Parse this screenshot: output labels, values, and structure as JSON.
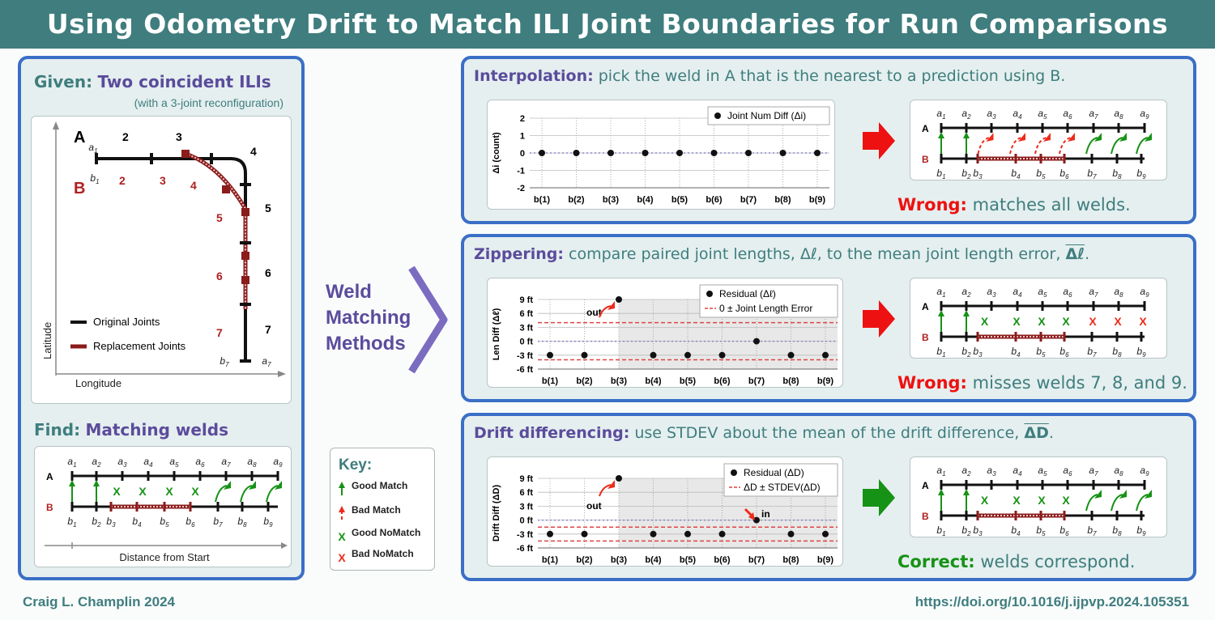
{
  "header": {
    "title": "Using Odometry Drift to Match ILI Joint Boundaries for Run Comparisons"
  },
  "given": {
    "label": "Given:",
    "title": "Two coincident ILIs",
    "subtitle": "(with a 3-joint reconfiguration)",
    "run_a": "A",
    "run_b": "B",
    "a_nums": [
      "2",
      "3",
      "4",
      "5",
      "6",
      "7"
    ],
    "b_nums": [
      "2",
      "3",
      "4",
      "5",
      "6",
      "7"
    ],
    "corner_labels": [
      "a1",
      "b1",
      "b7",
      "a7"
    ],
    "legend": [
      "Original Joints",
      "Replacement Joints"
    ],
    "axis_y": "Latitude",
    "axis_x": "Longitude"
  },
  "find": {
    "label": "Find:",
    "title": "Matching welds",
    "axis_x": "Distance from Start",
    "a_labels": [
      "a1",
      "a2",
      "a3",
      "a4",
      "a5",
      "a6",
      "a7",
      "a8",
      "a9"
    ],
    "b_labels": [
      "b1",
      "b2",
      "b3",
      "b4",
      "b5",
      "b6",
      "b7",
      "b8",
      "b9"
    ]
  },
  "methods": {
    "l1": "Weld",
    "l2": "Matching",
    "l3": "Methods"
  },
  "key": {
    "title": "Key:",
    "items": [
      "Good Match",
      "Bad Match",
      "Good NoMatch",
      "Bad NoMatch"
    ],
    "colors": {
      "good": "#169216",
      "bad": "#ee2a1a"
    }
  },
  "interpolation": {
    "title": "Interpolation:",
    "desc": "pick the weld in A that is the nearest to a prediction using B.",
    "verdict_label": "Wrong:",
    "verdict_text": "matches all welds.",
    "chart_data": {
      "type": "scatter",
      "categories": [
        "b(1)",
        "b(2)",
        "b(3)",
        "b(4)",
        "b(5)",
        "b(6)",
        "b(7)",
        "b(8)",
        "b(9)"
      ],
      "series": [
        {
          "name": "Joint Num Diff  (Δi)",
          "values": [
            0,
            0,
            0,
            0,
            0,
            0,
            0,
            0,
            0
          ]
        }
      ],
      "ylabel": "Δi (count)",
      "yticks": [
        "2",
        "1",
        "0",
        "-1",
        "-2"
      ],
      "ylim": [
        -2,
        2
      ],
      "grid": true,
      "legend": "top-right"
    }
  },
  "zippering": {
    "title": "Zippering:",
    "desc": "compare paired joint lengths, Δℓ, to the mean joint length error,",
    "desc_sym": "Δℓ",
    "verdict_label": "Wrong:",
    "verdict_text": "misses welds 7, 8, and 9.",
    "annotation": "out",
    "chart_data": {
      "type": "scatter",
      "categories": [
        "b(1)",
        "b(2)",
        "b(3)",
        "b(4)",
        "b(5)",
        "b(6)",
        "b(7)",
        "b(8)",
        "b(9)"
      ],
      "series": [
        {
          "name": "Residual  (Δℓ)",
          "values": [
            -3,
            -3,
            9,
            -3,
            -3,
            -3,
            0,
            -3,
            -3
          ]
        },
        {
          "name": "0 ± Joint Length Error",
          "band": [
            -4,
            4
          ]
        }
      ],
      "ylabel": "Len Diff (Δℓ)",
      "yticks": [
        "9 ft",
        "6 ft",
        "3 ft",
        "0 ft",
        "-3 ft",
        "-6 ft"
      ],
      "ylim": [
        -6,
        9
      ],
      "grid": true,
      "legend": "top-right"
    }
  },
  "drift": {
    "title": "Drift differencing:",
    "desc": "use STDEV about the mean of the drift difference,",
    "desc_sym": "ΔD",
    "verdict_label": "Correct:",
    "verdict_text": "welds correspond.",
    "annotation_out": "out",
    "annotation_in": "in",
    "chart_data": {
      "type": "scatter",
      "categories": [
        "b(1)",
        "b(2)",
        "b(3)",
        "b(4)",
        "b(5)",
        "b(6)",
        "b(7)",
        "b(8)",
        "b(9)"
      ],
      "series": [
        {
          "name": "Residual  (ΔD)",
          "values": [
            -3,
            -3,
            9,
            -3,
            -3,
            -3,
            0,
            -3,
            -3
          ]
        },
        {
          "name": "ΔD ± STDEV(ΔD)",
          "band": [
            -4.5,
            -1.5
          ]
        }
      ],
      "ylabel": "Drift Diff (ΔD)",
      "yticks": [
        "9 ft",
        "6 ft",
        "3 ft",
        "0 ft",
        "-3 ft",
        "-6 ft"
      ],
      "ylim": [
        -6,
        9
      ],
      "grid": true,
      "legend": "top-right"
    }
  },
  "weld_diagram": {
    "run_a": "A",
    "run_b": "B",
    "a_labels": [
      "a1",
      "a2",
      "a3",
      "a4",
      "a5",
      "a6",
      "a7",
      "a8",
      "a9"
    ],
    "b_labels": [
      "b1",
      "b2",
      "b3",
      "b4",
      "b5",
      "b6",
      "b7",
      "b8",
      "b9"
    ],
    "interp_marks": [
      "good",
      "good",
      "bad",
      "bad",
      "bad",
      "bad",
      "good",
      "good",
      "good"
    ],
    "zipper_marks": [
      "good",
      "good",
      "goodx",
      "goodx",
      "goodx",
      "goodx",
      "badx",
      "badx",
      "badx"
    ],
    "drift_marks": [
      "good",
      "good",
      "goodx",
      "goodx",
      "goodx",
      "goodx",
      "good",
      "good",
      "good"
    ]
  },
  "footer": {
    "author": "Craig L. Champlin 2024",
    "doi": "https://doi.org/10.1016/j.ijpvp.2024.105351"
  }
}
